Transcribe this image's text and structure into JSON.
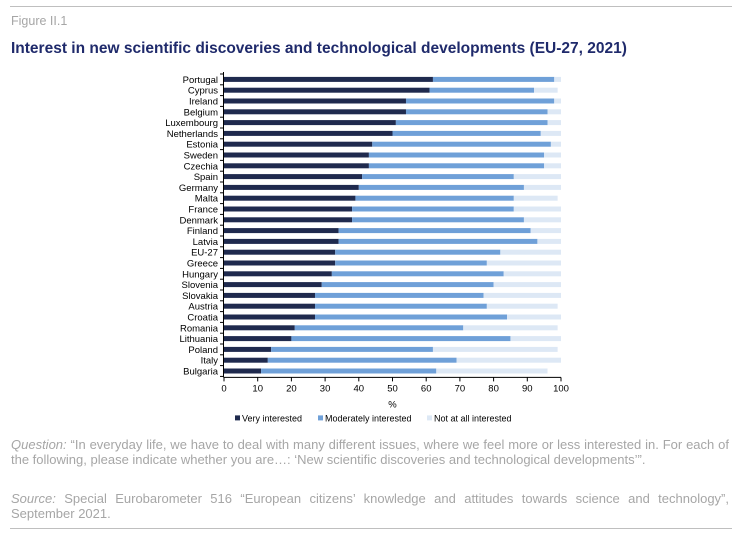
{
  "figure_label": "Figure II.1",
  "title": "Interest in new scientific discoveries and technological developments (EU-27, 2021)",
  "notes": {
    "question_lead": "Question:",
    "question_text": "“In everyday life, we have to deal with many different issues, where we feel more or less interested in. For each of the following, please indicate whether you are…:   ‘New scientific discoveries and technological developments’”.",
    "source_lead": "Source:",
    "source_text": "Special Eurobarometer 516 “European citizens’ knowledge and attitudes towards science and technology”, September 2021."
  },
  "colors": {
    "very_interested": "#1f2a4e",
    "moderately_interested": "#6fa0d8",
    "not_at_all_interested": "#dde8f5",
    "title": "#1f2a6b",
    "notes": "#a6a6a6"
  },
  "chart_data": {
    "type": "bar",
    "orientation": "horizontal",
    "stacked": true,
    "title": "",
    "xlabel": "%",
    "ylabel": "",
    "xlim": [
      0,
      100
    ],
    "xticks": [
      0,
      10,
      20,
      30,
      40,
      50,
      60,
      70,
      80,
      90,
      100
    ],
    "grid": false,
    "legend": "bottom",
    "categories": [
      "Portugal",
      "Cyprus",
      "Ireland",
      "Belgium",
      "Luxembourg",
      "Netherlands",
      "Estonia",
      "Sweden",
      "Czechia",
      "Spain",
      "Germany",
      "Malta",
      "France",
      "Denmark",
      "Finland",
      "Latvia",
      "EU-27",
      "Greece",
      "Hungary",
      "Slovenia",
      "Slovakia",
      "Austria",
      "Croatia",
      "Romania",
      "Lithuania",
      "Poland",
      "Italy",
      "Bulgaria"
    ],
    "series": [
      {
        "name": "Very interested",
        "values": [
          62,
          61,
          54,
          54,
          51,
          50,
          44,
          43,
          43,
          41,
          40,
          39,
          38,
          38,
          34,
          34,
          33,
          33,
          32,
          29,
          27,
          27,
          27,
          21,
          20,
          14,
          13,
          11
        ]
      },
      {
        "name": "Moderately interested",
        "values": [
          36,
          31,
          44,
          42,
          45,
          44,
          53,
          52,
          52,
          45,
          49,
          47,
          48,
          51,
          57,
          59,
          49,
          45,
          51,
          51,
          50,
          51,
          57,
          50,
          65,
          48,
          56,
          52
        ]
      },
      {
        "name": "Not at all interested",
        "values": [
          2,
          7,
          2,
          4,
          4,
          6,
          3,
          5,
          5,
          14,
          11,
          13,
          14,
          11,
          9,
          7,
          18,
          22,
          17,
          20,
          23,
          21,
          16,
          28,
          15,
          37,
          31,
          33
        ]
      }
    ]
  }
}
